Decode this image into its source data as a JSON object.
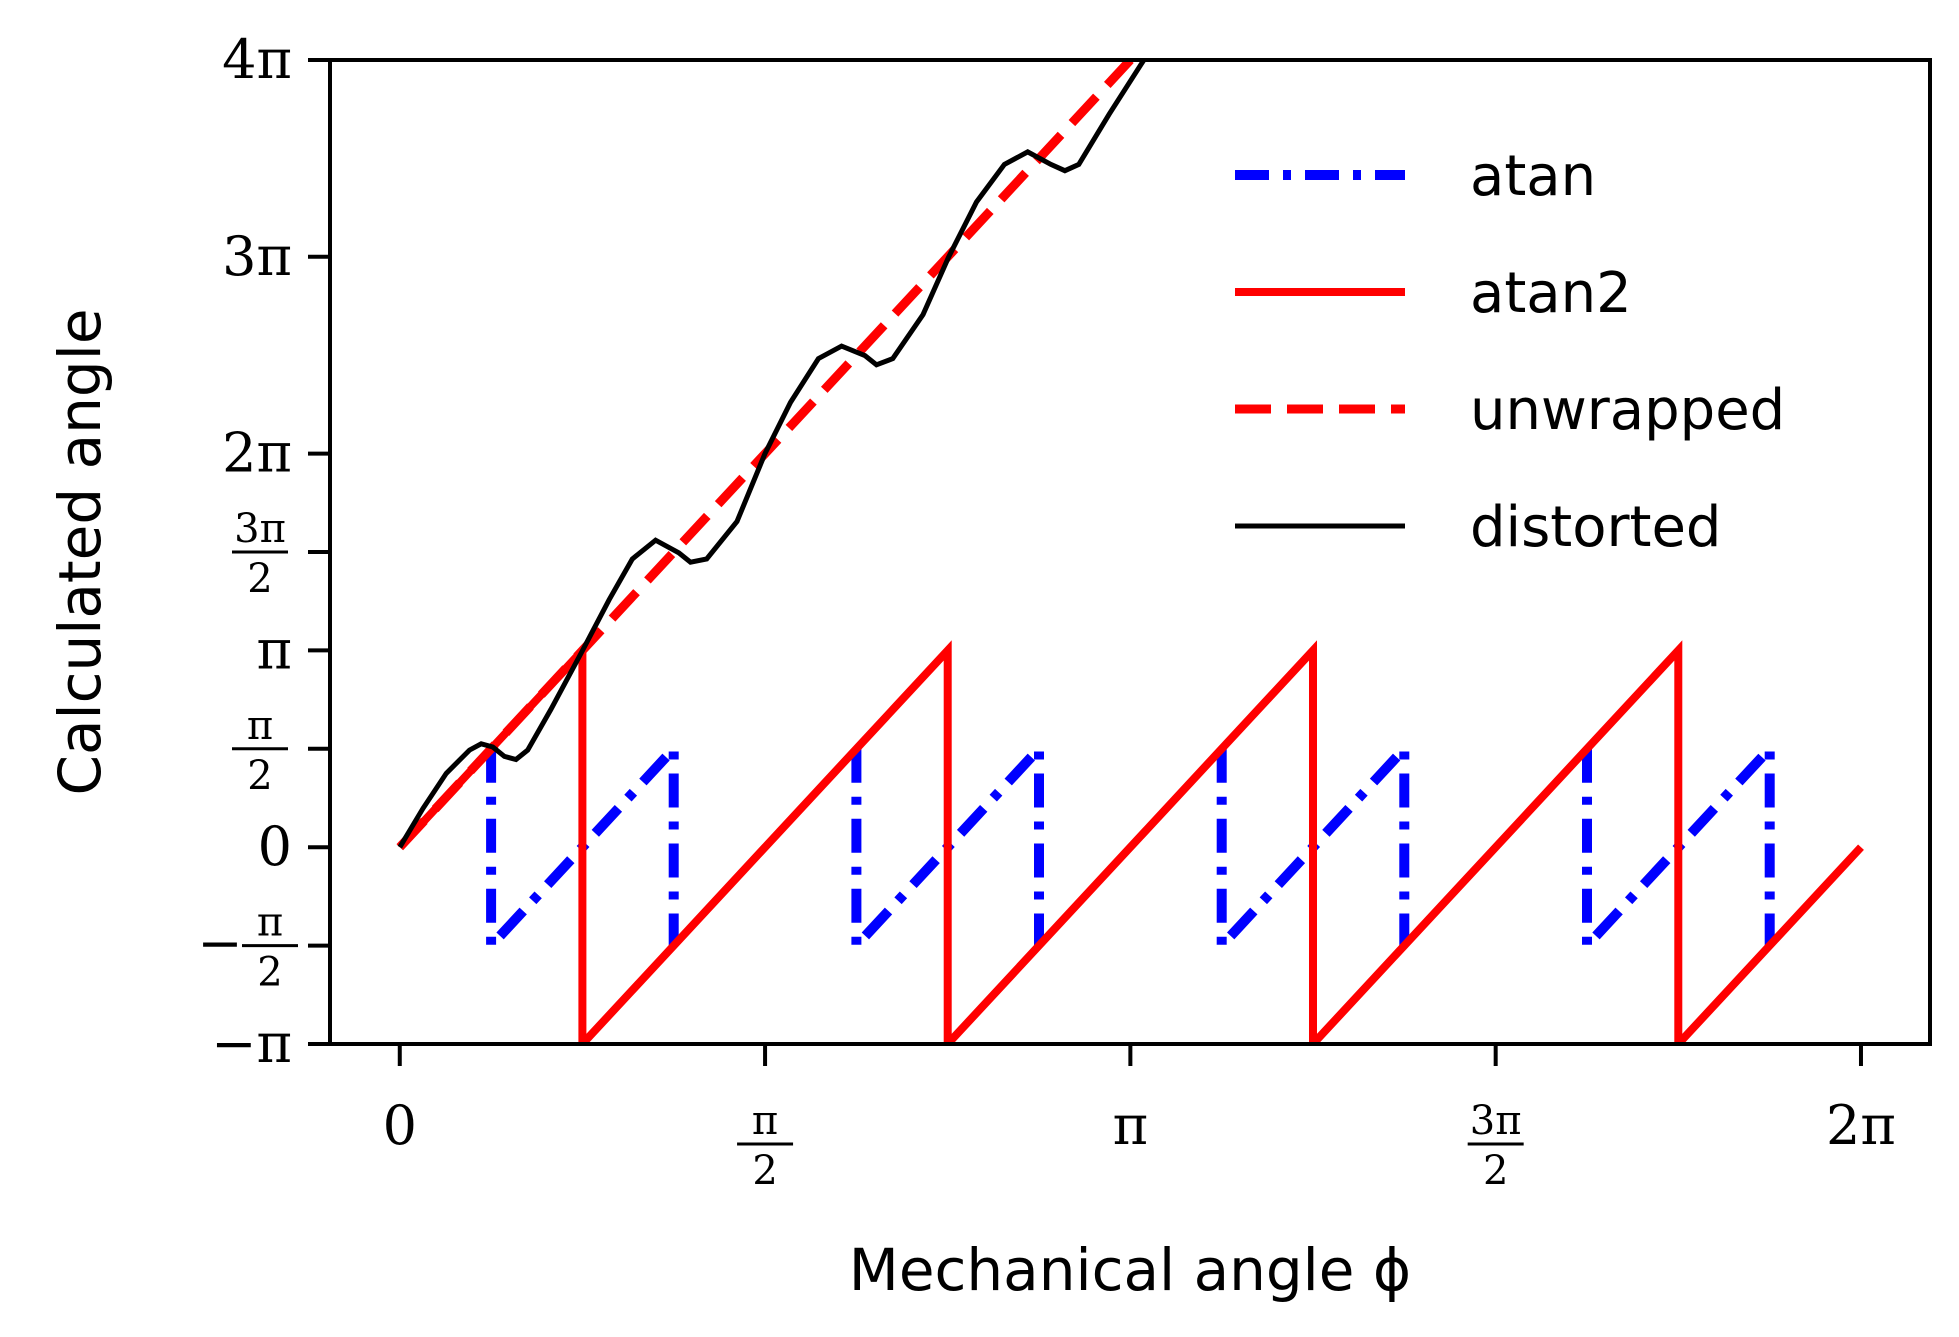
{
  "chart_data": {
    "type": "line",
    "title": "",
    "xlabel": "Mechanical angle ϕ",
    "ylabel": "Calculated angle",
    "xlim": [
      -0.3,
      6.58
    ],
    "ylim": [
      -3.1416,
      12.5664
    ],
    "grid": false,
    "legend_position": "top-right",
    "x_ticks": [
      {
        "value": 0,
        "label": "0"
      },
      {
        "value": 1.5708,
        "num": "π",
        "den": "2"
      },
      {
        "value": 3.1416,
        "label": "π"
      },
      {
        "value": 4.7124,
        "num": "3π",
        "den": "2"
      },
      {
        "value": 6.2832,
        "label": "2π"
      }
    ],
    "y_ticks": [
      {
        "value": -3.1416,
        "label": "−π"
      },
      {
        "value": -1.5708,
        "sign": "−",
        "num": "π",
        "den": "2"
      },
      {
        "value": 0,
        "label": "0"
      },
      {
        "value": 1.5708,
        "num": "π",
        "den": "2"
      },
      {
        "value": 3.1416,
        "label": "π"
      },
      {
        "value": 4.7124,
        "num": "3π",
        "den": "2"
      },
      {
        "value": 6.2832,
        "label": "2π"
      },
      {
        "value": 9.4248,
        "label": "3π"
      },
      {
        "value": 12.5664,
        "label": "4π"
      }
    ],
    "series": [
      {
        "name": "atan",
        "color": "#0000ff",
        "style": "dashdot",
        "segments": [
          [
            [
              0.3927,
              1.5708
            ],
            [
              0.3927,
              -1.5708
            ],
            [
              1.1781,
              1.5708
            ],
            [
              1.1781,
              -1.5708
            ]
          ],
          [
            [
              1.9635,
              1.5708
            ],
            [
              1.9635,
              -1.5708
            ],
            [
              2.7489,
              1.5708
            ],
            [
              2.7489,
              -1.5708
            ]
          ],
          [
            [
              3.5343,
              1.5708
            ],
            [
              3.5343,
              -1.5708
            ],
            [
              4.3197,
              1.5708
            ],
            [
              4.3197,
              -1.5708
            ]
          ],
          [
            [
              5.1051,
              1.5708
            ],
            [
              5.1051,
              -1.5708
            ],
            [
              5.8905,
              1.5708
            ],
            [
              5.8905,
              -1.5708
            ]
          ]
        ]
      },
      {
        "name": "atan2",
        "color": "#ff0000",
        "style": "solid",
        "segments": [
          [
            [
              0,
              0
            ],
            [
              0.7854,
              3.1416
            ],
            [
              0.7854,
              -3.1416
            ],
            [
              2.3562,
              3.1416
            ],
            [
              2.3562,
              -3.1416
            ],
            [
              3.927,
              3.1416
            ],
            [
              3.927,
              -3.1416
            ],
            [
              5.4978,
              3.1416
            ],
            [
              5.4978,
              -3.1416
            ],
            [
              6.2832,
              0
            ]
          ]
        ]
      },
      {
        "name": "unwrapped",
        "color": "#ff0000",
        "style": "dashed",
        "segments": [
          [
            [
              0,
              0
            ],
            [
              3.1416,
              12.5664
            ]
          ]
        ]
      },
      {
        "name": "distorted",
        "color": "#000000",
        "style": "solid",
        "segments": [
          [
            [
              0,
              0
            ],
            [
              0.1,
              0.62
            ],
            [
              0.2,
              1.18
            ],
            [
              0.3,
              1.55
            ],
            [
              0.35,
              1.65
            ],
            [
              0.4,
              1.6
            ],
            [
              0.45,
              1.45
            ],
            [
              0.5,
              1.4
            ],
            [
              0.55,
              1.55
            ],
            [
              0.65,
              2.2
            ],
            [
              0.78,
              3.1
            ],
            [
              0.9,
              3.95
            ],
            [
              1.0,
              4.6
            ],
            [
              1.1,
              4.9
            ],
            [
              1.2,
              4.7
            ],
            [
              1.25,
              4.55
            ],
            [
              1.32,
              4.6
            ],
            [
              1.45,
              5.2
            ],
            [
              1.57,
              6.28
            ],
            [
              1.68,
              7.1
            ],
            [
              1.8,
              7.8
            ],
            [
              1.9,
              8.0
            ],
            [
              2.0,
              7.85
            ],
            [
              2.05,
              7.7
            ],
            [
              2.12,
              7.8
            ],
            [
              2.25,
              8.5
            ],
            [
              2.36,
              9.42
            ],
            [
              2.48,
              10.3
            ],
            [
              2.6,
              10.9
            ],
            [
              2.7,
              11.1
            ],
            [
              2.8,
              10.9
            ],
            [
              2.86,
              10.8
            ],
            [
              2.92,
              10.9
            ],
            [
              3.05,
              11.7
            ],
            [
              3.2,
              12.57
            ]
          ]
        ]
      }
    ]
  }
}
